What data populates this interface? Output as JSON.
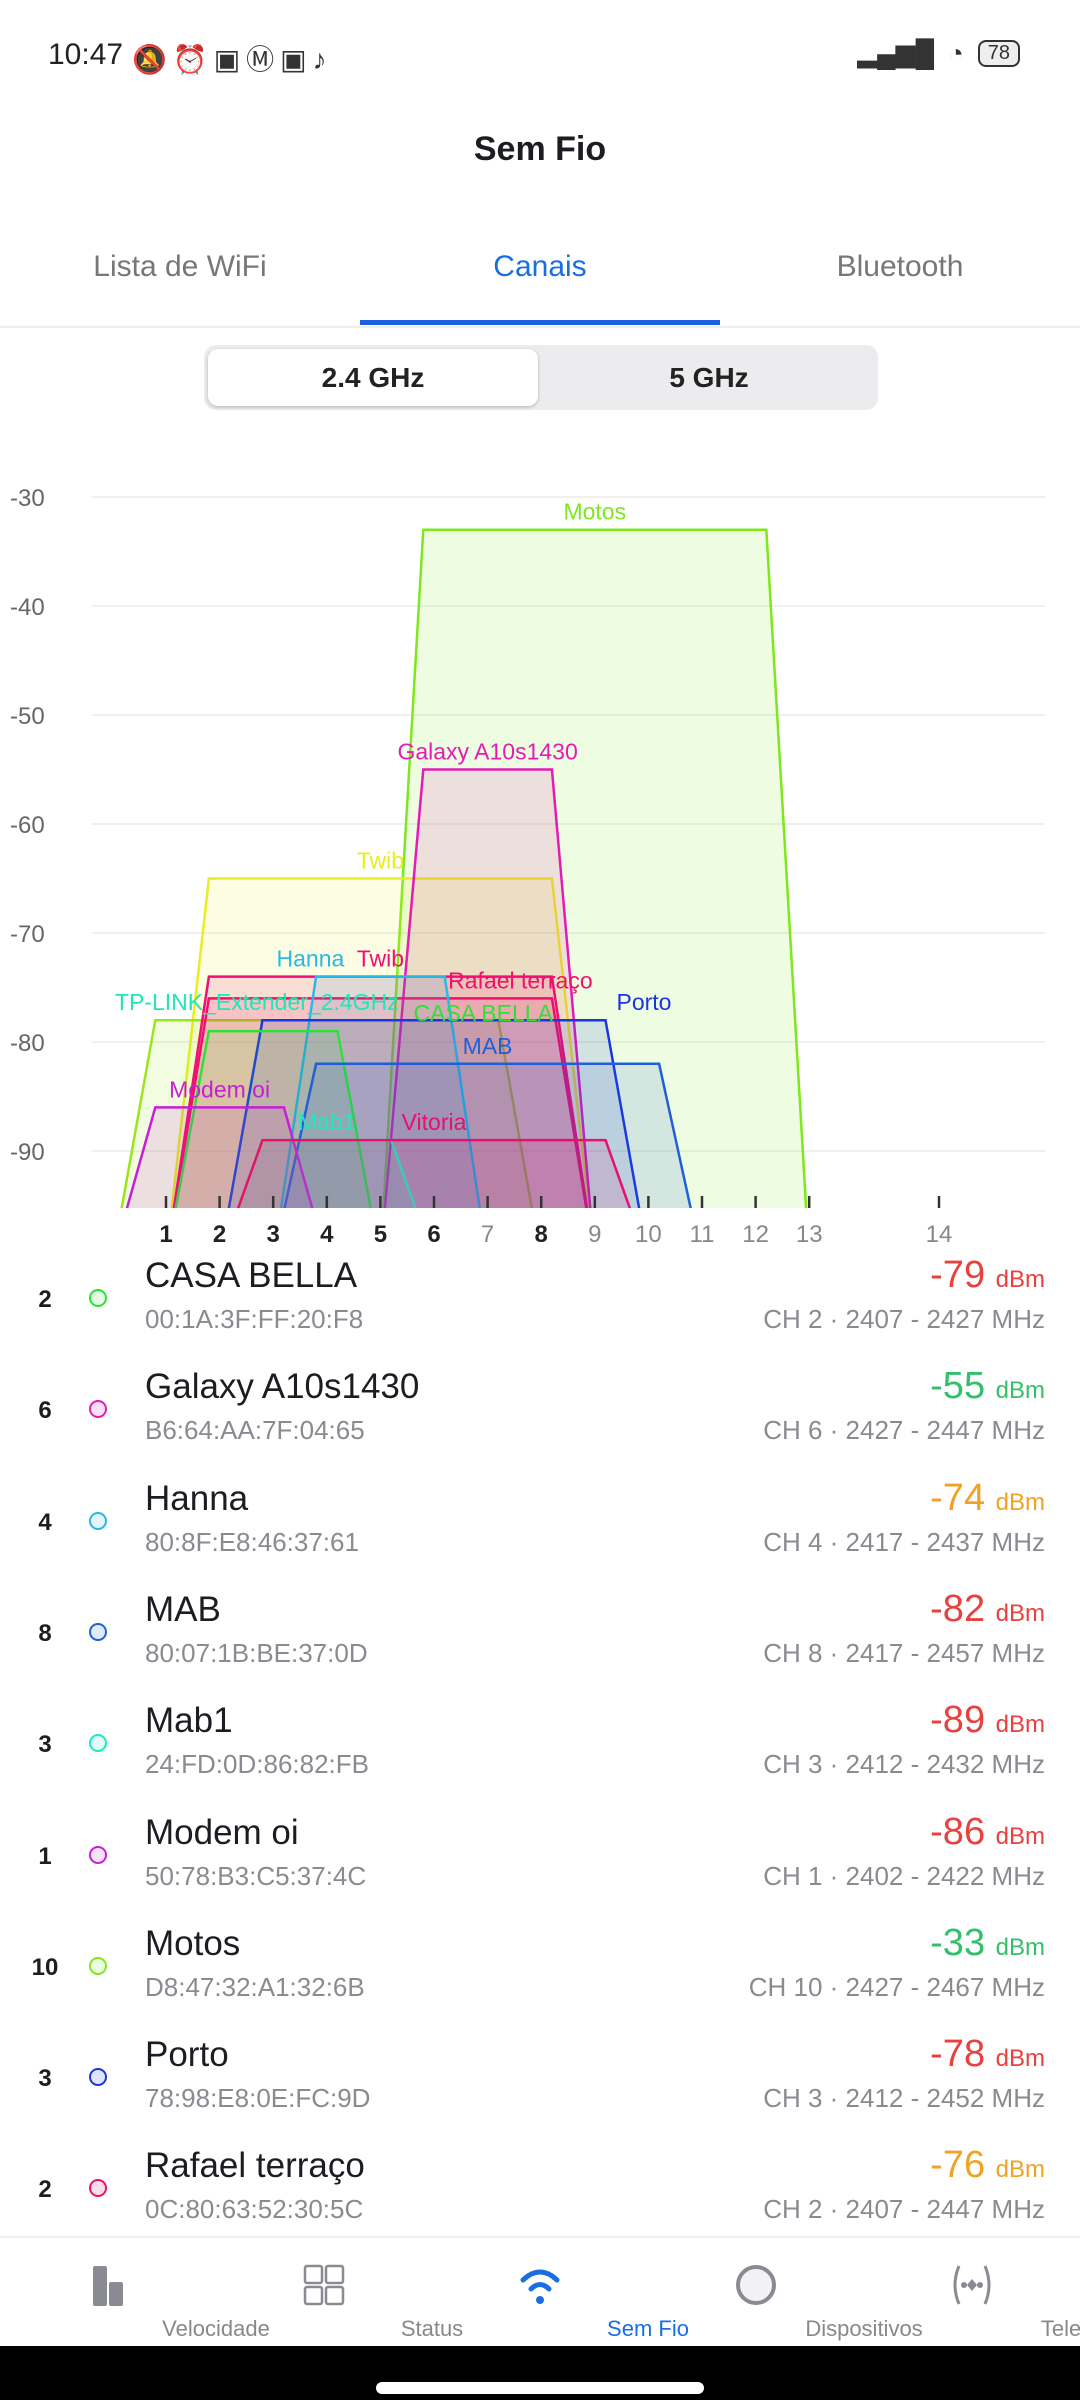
{
  "status_bar": {
    "time": "10:47",
    "battery": "78"
  },
  "header": {
    "title": "Sem Fio"
  },
  "tabs": [
    {
      "label": "Lista de WiFi"
    },
    {
      "label": "Canais"
    },
    {
      "label": "Bluetooth"
    }
  ],
  "band": {
    "options": [
      "2.4 GHz",
      "5 GHz"
    ],
    "selected": "2.4 GHz"
  },
  "chart_data": {
    "type": "area",
    "ylim": [
      -95,
      -30
    ],
    "yticks": [
      "-30",
      "-40",
      "-50",
      "-60",
      "-70",
      "-80",
      "-90"
    ],
    "xticks": [
      {
        "label": "1",
        "bold": true
      },
      {
        "label": "2",
        "bold": true
      },
      {
        "label": "3",
        "bold": true
      },
      {
        "label": "4",
        "bold": true
      },
      {
        "label": "5",
        "bold": true
      },
      {
        "label": "6",
        "bold": true
      },
      {
        "label": "7",
        "bold": false
      },
      {
        "label": "8",
        "bold": true
      },
      {
        "label": "9",
        "bold": false
      },
      {
        "label": "10",
        "bold": false
      },
      {
        "label": "11",
        "bold": false
      },
      {
        "label": "12",
        "bold": false
      },
      {
        "label": "13",
        "bold": false
      },
      {
        "label": "14",
        "bold": false
      }
    ],
    "grid": true,
    "series": [
      {
        "name": "Motos",
        "dbm": -33,
        "freq": [
          2427,
          2467
        ],
        "color": "#7ee81c"
      },
      {
        "name": "Twib",
        "dbm": -65,
        "freq": [
          2407,
          2447
        ],
        "color": "#e8ee20"
      },
      {
        "name": "TP-LINK_Extender_2.4GHz",
        "dbm": -78,
        "freq": [
          2402,
          2442
        ],
        "color": "#9be61a",
        "label_color": "#1de8b8"
      },
      {
        "name": "Galaxy A10s1430",
        "dbm": -55,
        "freq": [
          2427,
          2447
        ],
        "color": "#e41cb4"
      },
      {
        "name": "Twib",
        "dbm": -74,
        "freq": [
          2407,
          2447
        ],
        "color": "#ee1075"
      },
      {
        "name": "Rafael terraço",
        "dbm": -76,
        "freq": [
          2407,
          2447
        ],
        "color": "#f0106a"
      },
      {
        "name": "Hanna",
        "dbm": -74,
        "freq": [
          2417,
          2437
        ],
        "color": "#2ab8e4"
      },
      {
        "name": "Porto",
        "dbm": -78,
        "freq": [
          2412,
          2452
        ],
        "color": "#1a36e0"
      },
      {
        "name": "CASA BELLA",
        "dbm": -79,
        "freq": [
          2407,
          2427
        ],
        "color": "#2ee03a"
      },
      {
        "name": "MAB",
        "dbm": -82,
        "freq": [
          2417,
          2457
        ],
        "color": "#1f5fd8"
      },
      {
        "name": "Modem oi",
        "dbm": -86,
        "freq": [
          2402,
          2422
        ],
        "color": "#c81ed8"
      },
      {
        "name": "Mab1",
        "dbm": -89,
        "freq": [
          2412,
          2432
        ],
        "color": "#20e8c0"
      },
      {
        "name": "Vitoria",
        "dbm": -89,
        "freq": [
          2412,
          2452
        ],
        "color": "#e8106a"
      }
    ]
  },
  "networks": [
    {
      "ch": "2",
      "name": "CASA BELLA",
      "mac": "00:1A:3F:FF:20:F8",
      "dbm": "-79",
      "unit": "dBm",
      "freq": "CH 2 · 2407 - 2427 MHz",
      "color": "#2ee03a",
      "level": "bad"
    },
    {
      "ch": "6",
      "name": "Galaxy A10s1430",
      "mac": "B6:64:AA:7F:04:65",
      "dbm": "-55",
      "unit": "dBm",
      "freq": "CH 6 · 2427 - 2447 MHz",
      "color": "#e41cb4",
      "level": "good"
    },
    {
      "ch": "4",
      "name": "Hanna",
      "mac": "80:8F:E8:46:37:61",
      "dbm": "-74",
      "unit": "dBm",
      "freq": "CH 4 · 2417 - 2437 MHz",
      "color": "#2ab8e4",
      "level": "fair"
    },
    {
      "ch": "8",
      "name": "MAB",
      "mac": "80:07:1B:BE:37:0D",
      "dbm": "-82",
      "unit": "dBm",
      "freq": "CH 8 · 2417 - 2457 MHz",
      "color": "#1f5fd8",
      "level": "bad"
    },
    {
      "ch": "3",
      "name": "Mab1",
      "mac": "24:FD:0D:86:82:FB",
      "dbm": "-89",
      "unit": "dBm",
      "freq": "CH 3 · 2412 - 2432 MHz",
      "color": "#20e8c0",
      "level": "bad"
    },
    {
      "ch": "1",
      "name": "Modem oi",
      "mac": "50:78:B3:C5:37:4C",
      "dbm": "-86",
      "unit": "dBm",
      "freq": "CH 1 · 2402 - 2422 MHz",
      "color": "#c81ed8",
      "level": "bad"
    },
    {
      "ch": "10",
      "name": "Motos",
      "mac": "D8:47:32:A1:32:6B",
      "dbm": "-33",
      "unit": "dBm",
      "freq": "CH 10 · 2427 - 2467 MHz",
      "color": "#7ee81c",
      "level": "good"
    },
    {
      "ch": "3",
      "name": "Porto",
      "mac": "78:98:E8:0E:FC:9D",
      "dbm": "-78",
      "unit": "dBm",
      "freq": "CH 3 · 2412 - 2452 MHz",
      "color": "#1a36e0",
      "level": "bad"
    },
    {
      "ch": "2",
      "name": "Rafael terraço",
      "mac": "0C:80:63:52:30:5C",
      "dbm": "-76",
      "unit": "dBm",
      "freq": "CH 2 · 2407 - 2447 MHz",
      "color": "#f0106a",
      "level": "fair"
    }
  ],
  "level_colors": {
    "good": "#34c06a",
    "fair": "#f0a224",
    "bad": "#e8413e"
  },
  "nav": [
    {
      "label": "Velocidade"
    },
    {
      "label": "Status"
    },
    {
      "label": "Sem Fio"
    },
    {
      "label": "Dispositivos"
    },
    {
      "label": "Teleport"
    }
  ]
}
